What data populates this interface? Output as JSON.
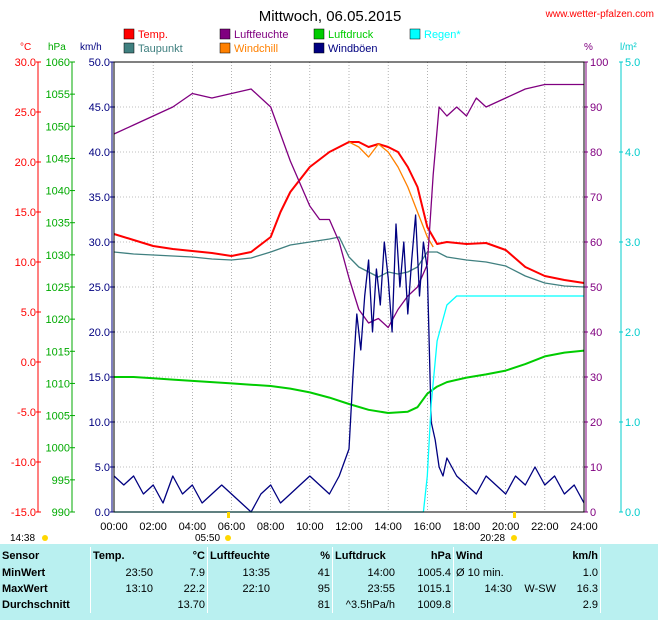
{
  "header": {
    "title": "Mittwoch, 06.05.2015",
    "site": "www.wetter-pfalzen.com"
  },
  "axis_units": {
    "temp": "°C",
    "pressure": "hPa",
    "wind": "km/h",
    "humidity": "%",
    "rain": "l/m²"
  },
  "legend": [
    {
      "label": "Temp.",
      "color": "#ff0000"
    },
    {
      "label": "Luftfeuchte",
      "color": "#800080"
    },
    {
      "label": "Luftdruck",
      "color": "#00cc00"
    },
    {
      "label": "Regen*",
      "color": "#00ffff"
    },
    {
      "label": "Taupunkt",
      "color": "#408080"
    },
    {
      "label": "Windchill",
      "color": "#ff8000"
    },
    {
      "label": "Windböen",
      "color": "#000080"
    }
  ],
  "sun": {
    "sunrise": "05:50",
    "sunset": "20:28",
    "daylength": "14:38"
  },
  "chart_data": {
    "type": "line",
    "x_ticks": [
      "00:00",
      "02:00",
      "04:00",
      "06:00",
      "08:00",
      "10:00",
      "12:00",
      "14:00",
      "16:00",
      "18:00",
      "20:00",
      "22:00",
      "24:00"
    ],
    "x_range_hours": [
      0,
      24
    ],
    "axes": {
      "temp": {
        "unit": "°C",
        "range": [
          -15,
          30
        ],
        "ticks": [
          "30.0",
          "25.0",
          "20.0",
          "15.0",
          "10.0",
          "5.0",
          "0.0",
          "-5.0",
          "-10.0",
          "-15.0"
        ],
        "color": "#ff0000"
      },
      "pressure": {
        "unit": "hPa",
        "range": [
          990,
          1060
        ],
        "ticks": [
          "1060",
          "1055",
          "1050",
          "1045",
          "1040",
          "1035",
          "1030",
          "1025",
          "1020",
          "1015",
          "1010",
          "1005",
          "1000",
          "995",
          "990"
        ],
        "color": "#00aa00"
      },
      "wind": {
        "unit": "km/h",
        "range": [
          0,
          50
        ],
        "ticks": [
          "50.0",
          "45.0",
          "40.0",
          "35.0",
          "30.0",
          "25.0",
          "20.0",
          "15.0",
          "10.0",
          "5.0",
          "0.0"
        ],
        "color": "#000080"
      },
      "humidity": {
        "unit": "%",
        "range": [
          0,
          100
        ],
        "ticks": [
          "100",
          "90",
          "80",
          "70",
          "60",
          "50",
          "40",
          "30",
          "20",
          "10",
          "0"
        ],
        "color": "#800080"
      },
      "rain": {
        "unit": "l/m²",
        "range": [
          0,
          5
        ],
        "ticks": [
          "5.0",
          "4.0",
          "3.0",
          "2.0",
          "1.0",
          "0.0"
        ],
        "color": "#00cccc"
      }
    },
    "series": [
      {
        "name": "Temp.",
        "color": "#ff0000",
        "axis": "temp",
        "x": [
          0,
          1,
          2,
          3,
          4,
          5,
          6,
          7,
          8,
          8.5,
          9,
          10,
          11,
          11.5,
          12,
          12.5,
          13,
          13.5,
          14,
          14.5,
          15,
          15.5,
          16,
          16.5,
          17,
          18,
          19,
          20,
          21,
          22,
          23,
          24
        ],
        "y": [
          12.8,
          12.2,
          11.6,
          11.3,
          11.1,
          10.9,
          10.6,
          11.0,
          12.5,
          15.0,
          17.0,
          19.5,
          21.0,
          21.5,
          22.0,
          22.0,
          21.5,
          21.8,
          21.5,
          21.0,
          19.5,
          17.5,
          13.5,
          11.8,
          12.0,
          11.8,
          11.9,
          11.2,
          9.5,
          8.6,
          8.2,
          7.9
        ]
      },
      {
        "name": "Taupunkt",
        "color": "#408080",
        "axis": "temp",
        "x": [
          0,
          1,
          2,
          3,
          4,
          5,
          6,
          7,
          8,
          9,
          10,
          11,
          11.5,
          12,
          12.5,
          13,
          13.5,
          14,
          14.5,
          15,
          15.5,
          16,
          16.5,
          17,
          18,
          19,
          20,
          21,
          22,
          23,
          24
        ],
        "y": [
          11.0,
          10.8,
          10.7,
          10.6,
          10.5,
          10.3,
          10.2,
          10.4,
          11.0,
          11.7,
          12.0,
          12.3,
          12.5,
          10.5,
          9.5,
          9.0,
          8.5,
          9.0,
          8.8,
          9.0,
          9.5,
          11.0,
          11.0,
          10.5,
          10.2,
          10.0,
          9.6,
          8.6,
          7.9,
          7.6,
          7.5
        ]
      },
      {
        "name": "Windchill",
        "color": "#ff8000",
        "axis": "temp",
        "x": [
          12,
          12.5,
          13,
          13.5,
          14,
          14.5,
          15,
          15.5,
          16,
          16.3
        ],
        "y": [
          22.0,
          21.5,
          20.5,
          21.8,
          21.0,
          19.5,
          17.5,
          15.0,
          12.5,
          11.5
        ]
      },
      {
        "name": "Luftfeuchte",
        "color": "#800080",
        "axis": "humidity",
        "x": [
          0,
          1,
          2,
          3,
          4,
          5,
          6,
          7,
          8,
          9,
          10,
          10.5,
          11,
          11.5,
          12,
          12.5,
          13,
          13.5,
          14,
          14.5,
          15,
          15.5,
          16,
          16.3,
          16.6,
          17,
          17.5,
          18,
          18.5,
          19,
          20,
          21,
          22,
          23,
          24
        ],
        "y": [
          84,
          86,
          88,
          90,
          93,
          92,
          93,
          94,
          90,
          78,
          68,
          65,
          65,
          60,
          52,
          45,
          42,
          43,
          41,
          45,
          48,
          50,
          55,
          75,
          90,
          88,
          90,
          88,
          92,
          90,
          92,
          94,
          95,
          95,
          95
        ]
      },
      {
        "name": "Luftdruck",
        "color": "#00cc00",
        "axis": "pressure",
        "x": [
          0,
          1,
          2,
          3,
          4,
          5,
          6,
          7,
          8,
          9,
          10,
          11,
          12,
          13,
          14,
          15,
          15.5,
          16,
          16.5,
          17,
          18,
          19,
          20,
          21,
          22,
          23,
          24
        ],
        "y": [
          1011.0,
          1011.0,
          1010.8,
          1010.6,
          1010.4,
          1010.2,
          1010.0,
          1009.8,
          1009.6,
          1009.2,
          1008.6,
          1007.8,
          1006.8,
          1005.9,
          1005.4,
          1005.6,
          1006.3,
          1008.4,
          1009.5,
          1010.2,
          1010.9,
          1011.4,
          1012.0,
          1013.0,
          1014.2,
          1014.8,
          1015.1
        ]
      },
      {
        "name": "Windböen",
        "color": "#000080",
        "axis": "wind",
        "x": [
          0,
          0.5,
          1,
          1.5,
          2,
          2.5,
          3,
          3.5,
          4,
          4.5,
          5,
          5.5,
          6,
          6.5,
          7,
          7.5,
          8,
          8.5,
          9,
          9.5,
          10,
          10.5,
          11,
          11.5,
          12,
          12.2,
          12.4,
          12.6,
          12.8,
          13,
          13.2,
          13.4,
          13.6,
          13.8,
          14,
          14.2,
          14.4,
          14.6,
          14.8,
          15,
          15.2,
          15.4,
          15.6,
          15.8,
          16,
          16.2,
          16.4,
          16.6,
          16.8,
          17,
          17.5,
          18,
          18.5,
          19,
          19.5,
          20,
          20.5,
          21,
          21.5,
          22,
          22.5,
          23,
          23.5,
          24
        ],
        "y": [
          4,
          3,
          4,
          2,
          3,
          1,
          4,
          2,
          3,
          1,
          2,
          3,
          2,
          1,
          0,
          2,
          3,
          1,
          2,
          3,
          4,
          3,
          2,
          4,
          7,
          15,
          22,
          18,
          24,
          28,
          20,
          27,
          23,
          30,
          26,
          20,
          32,
          25,
          30,
          22,
          28,
          33,
          24,
          30,
          27,
          10,
          8,
          5,
          4,
          6,
          4,
          3,
          2,
          4,
          3,
          2,
          4,
          3,
          5,
          3,
          4,
          2,
          3,
          1
        ]
      },
      {
        "name": "Regen*",
        "color": "#00ffff",
        "axis": "rain",
        "x": [
          0,
          15.8,
          16.0,
          16.2,
          16.5,
          17.0,
          17.5,
          18,
          20,
          22,
          24
        ],
        "y": [
          0,
          0,
          0.4,
          1.2,
          1.9,
          2.3,
          2.4,
          2.4,
          2.4,
          2.4,
          2.4
        ]
      }
    ]
  },
  "table": {
    "headers": {
      "sensor": "Sensor",
      "temp": "Temp.",
      "temp_unit": "°C",
      "hum": "Luftfeuchte",
      "hum_unit": "%",
      "press": "Luftdruck",
      "press_unit": "hPa",
      "wind": "Wind",
      "wind_unit": "km/h"
    },
    "rows": [
      {
        "label": "MinWert",
        "temp_time": "23:50",
        "temp_val": "7.9",
        "hum_time": "13:35",
        "hum_val": "41",
        "press_time": "14:00",
        "press_val": "1005.4",
        "wind_time": "Ø 10 min.",
        "wind_val": "1.0"
      },
      {
        "label": "MaxWert",
        "temp_time": "13:10",
        "temp_val": "22.2",
        "hum_time": "22:10",
        "hum_val": "95",
        "press_time": "23:55",
        "press_val": "1015.1",
        "wind_time": "14:30",
        "wind_dir": "W-SW",
        "wind_val": "16.3"
      },
      {
        "label": "Durchschnitt",
        "temp_time": "",
        "temp_val": "13.70",
        "hum_time": "",
        "hum_val": "81",
        "press_time": "^3.5hPa/h",
        "press_val": "1009.8",
        "wind_time": "",
        "wind_val": "2.9"
      }
    ]
  }
}
